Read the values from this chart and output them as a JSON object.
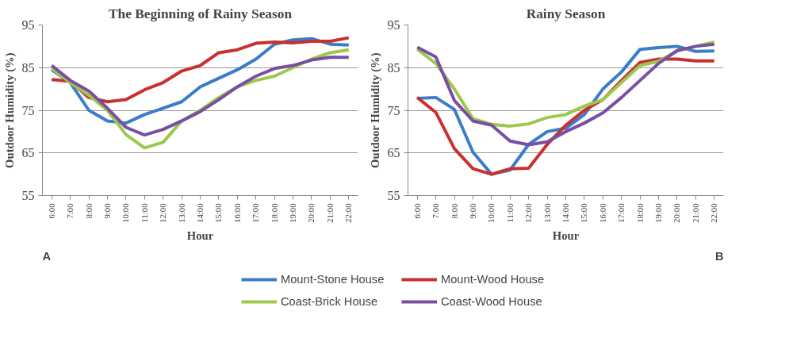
{
  "chart_data": [
    {
      "type": "line",
      "title": "The Beginning of Rainy Season",
      "xlabel": "Hour",
      "ylabel": "Outdoor Humidity (%)",
      "annotations": [
        "A"
      ],
      "categories": [
        "6:00",
        "7:00",
        "8:00",
        "9:00",
        "10:00",
        "11:00",
        "12:00",
        "13:00",
        "14:00",
        "15:00",
        "16:00",
        "17:00",
        "18:00",
        "19:00",
        "20:00",
        "21:00",
        "22:00"
      ],
      "ylim": [
        55,
        95
      ],
      "yticks": [
        55,
        65,
        75,
        85,
        95
      ],
      "grid": "y",
      "legend": "bottom",
      "marker": "none",
      "line_style": "solid",
      "series": [
        {
          "name": "Mount-Stone House",
          "color": "#3a7dc9",
          "values": [
            84.5,
            81.5,
            75,
            72.5,
            72,
            74,
            75.5,
            77,
            80.5,
            82.5,
            84.5,
            87,
            90.5,
            91.5,
            91.8,
            90.5,
            90.3
          ]
        },
        {
          "name": "Mount-Wood House",
          "color": "#c8312f",
          "values": [
            82.2,
            81.8,
            78,
            77,
            77.5,
            79.8,
            81.5,
            84.2,
            85.5,
            88.5,
            89.2,
            90.7,
            91,
            90.8,
            91.2,
            91.2,
            92
          ]
        },
        {
          "name": "Coast-Brick House",
          "color": "#9bc94b",
          "values": [
            84.8,
            81.5,
            78.5,
            75,
            69.3,
            66.2,
            67.5,
            72.5,
            75,
            78,
            80.5,
            82,
            83,
            85,
            87,
            88.5,
            89.2
          ]
        },
        {
          "name": "Coast-Wood House",
          "color": "#7a4ea3",
          "values": [
            85.5,
            82,
            79.5,
            75.5,
            71,
            69.2,
            70.5,
            72.5,
            74.7,
            77.5,
            80.5,
            83,
            84.8,
            85.5,
            86.8,
            87.4,
            87.4
          ]
        }
      ]
    },
    {
      "type": "line",
      "title": "Rainy Season",
      "xlabel": "Hour",
      "ylabel": "Outdoor Humidity (%)",
      "annotations": [
        "B"
      ],
      "categories": [
        "6:00",
        "7:00",
        "8:00",
        "9:00",
        "10:00",
        "11:00",
        "12:00",
        "13:00",
        "14:00",
        "15:00",
        "16:00",
        "17:00",
        "18:00",
        "19:00",
        "20:00",
        "21:00",
        "22:00"
      ],
      "ylim": [
        55,
        95
      ],
      "yticks": [
        55,
        65,
        75,
        85,
        95
      ],
      "grid": "y",
      "marker": "none",
      "line_style": "solid",
      "series": [
        {
          "color": "#3a7dc9",
          "values": [
            77.8,
            78,
            75.2,
            65.2,
            60,
            61,
            67,
            70,
            70.8,
            74,
            80,
            84,
            89.3,
            89.7,
            90,
            88.8,
            88.9
          ]
        },
        {
          "color": "#c8312f",
          "values": [
            78,
            74.5,
            66,
            61.3,
            60,
            61.3,
            61.4,
            67,
            71.5,
            75,
            77.5,
            82,
            86.2,
            87,
            87,
            86.6,
            86.6
          ]
        },
        {
          "color": "#9bc94b",
          "values": [
            89.3,
            86,
            80,
            73,
            71.7,
            71.3,
            71.8,
            73.3,
            74,
            76,
            77.5,
            81.5,
            85.5,
            86.5,
            88.9,
            90,
            91
          ]
        },
        {
          "color": "#7a4ea3",
          "values": [
            89.8,
            87.5,
            77.3,
            72.5,
            71.5,
            67.8,
            66.9,
            67.6,
            70,
            72,
            74.4,
            78,
            82,
            86,
            89,
            90,
            90.5
          ]
        }
      ]
    }
  ]
}
